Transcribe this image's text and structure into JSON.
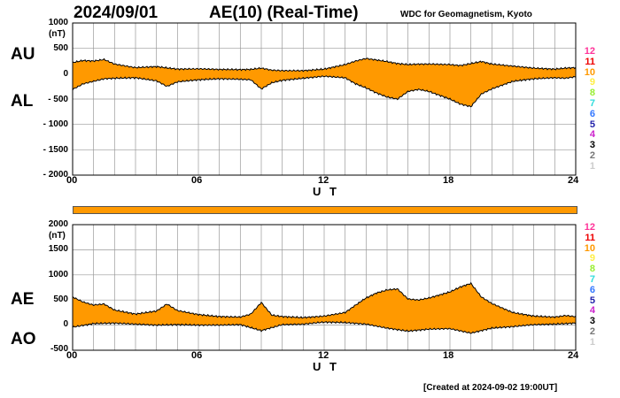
{
  "header": {
    "date": "2024/09/01",
    "title": "AE(10) (Real-Time)",
    "source": "WDC for Geomagnetism, Kyoto"
  },
  "footer": "[Created at 2024-09-02 19:00UT]",
  "colors": {
    "fill": "#ff9900",
    "grid": "#999999",
    "line": "#000000"
  },
  "panels": [
    {
      "labels_upper": "AU",
      "labels_lower": "AL",
      "unit": "(nT)",
      "yticks": [
        "1000",
        "500",
        "0",
        "- 500",
        "- 1000",
        "- 1500",
        "- 2000"
      ],
      "xticks": [
        "00",
        "06",
        "12",
        "18",
        "24"
      ],
      "xlabel": "U T"
    },
    {
      "labels_upper": "AE",
      "labels_lower": "AO",
      "unit": "(nT)",
      "yticks": [
        "2000",
        "1500",
        "1000",
        "500",
        "0",
        "-500"
      ],
      "xticks": [
        "00",
        "06",
        "12",
        "18",
        "24"
      ],
      "xlabel": "U T"
    }
  ],
  "stations": [
    {
      "label": "12",
      "color": "#ff3399"
    },
    {
      "label": "11",
      "color": "#ee0000"
    },
    {
      "label": "10",
      "color": "#ff9900"
    },
    {
      "label": "9",
      "color": "#ffee44"
    },
    {
      "label": "8",
      "color": "#99ee33"
    },
    {
      "label": "7",
      "color": "#33dddd"
    },
    {
      "label": "6",
      "color": "#3377ff"
    },
    {
      "label": "5",
      "color": "#2222aa"
    },
    {
      "label": "4",
      "color": "#cc22cc"
    },
    {
      "label": "3",
      "color": "#000000"
    },
    {
      "label": "2",
      "color": "#777777"
    },
    {
      "label": "1",
      "color": "#cccccc"
    }
  ],
  "chart_data": [
    {
      "type": "area",
      "x_unit": "hours UT",
      "xlim": [
        0,
        24
      ],
      "ylim": [
        -2000,
        1000
      ],
      "series": [
        {
          "name": "AU",
          "x": [
            0,
            0.5,
            1,
            1.5,
            2,
            3,
            4,
            5,
            6,
            7,
            8,
            8.5,
            9,
            9.5,
            10,
            11,
            12,
            13,
            13.5,
            14,
            14.5,
            15,
            15.5,
            16,
            16.5,
            17,
            18,
            18.5,
            19,
            19.5,
            20,
            21,
            22,
            23,
            23.5,
            24
          ],
          "values": [
            220,
            260,
            250,
            280,
            190,
            120,
            140,
            90,
            95,
            85,
            80,
            85,
            110,
            70,
            60,
            60,
            90,
            180,
            250,
            300,
            270,
            240,
            200,
            180,
            190,
            190,
            180,
            160,
            200,
            240,
            190,
            150,
            110,
            90,
            110,
            120
          ]
        },
        {
          "name": "AL",
          "x": [
            0,
            0.5,
            1,
            1.5,
            2,
            3,
            4,
            4.5,
            5,
            6,
            7,
            8,
            8.5,
            9,
            9.5,
            10,
            11,
            12,
            13,
            13.5,
            14,
            14.5,
            15,
            15.5,
            16,
            16.5,
            17,
            18,
            18.5,
            19,
            19.5,
            20,
            21,
            22,
            23,
            23.5,
            24
          ],
          "values": [
            -310,
            -200,
            -150,
            -100,
            -90,
            -80,
            -140,
            -250,
            -160,
            -120,
            -100,
            -110,
            -120,
            -300,
            -180,
            -130,
            -90,
            -50,
            -80,
            -200,
            -280,
            -380,
            -460,
            -500,
            -350,
            -310,
            -350,
            -500,
            -600,
            -650,
            -400,
            -300,
            -150,
            -100,
            -80,
            -90,
            -60
          ]
        }
      ]
    },
    {
      "type": "area",
      "x_unit": "hours UT",
      "xlim": [
        0,
        24
      ],
      "ylim": [
        -500,
        2000
      ],
      "series": [
        {
          "name": "AE",
          "x": [
            0,
            0.5,
            1,
            1.5,
            2,
            3,
            4,
            4.5,
            5,
            6,
            7,
            8,
            8.5,
            9,
            9.5,
            10,
            11,
            12,
            13,
            13.5,
            14,
            14.5,
            15,
            15.5,
            16,
            16.5,
            17,
            18,
            18.5,
            19,
            19.5,
            20,
            21,
            22,
            23,
            23.5,
            24
          ],
          "values": [
            560,
            460,
            400,
            420,
            300,
            220,
            280,
            420,
            290,
            210,
            170,
            160,
            220,
            450,
            200,
            170,
            150,
            180,
            250,
            400,
            540,
            640,
            700,
            720,
            520,
            500,
            540,
            660,
            760,
            830,
            560,
            430,
            250,
            180,
            160,
            190,
            170
          ]
        },
        {
          "name": "AO",
          "x": [
            0,
            1,
            2,
            3,
            4,
            5,
            6,
            7,
            8,
            9,
            10,
            11,
            12,
            13,
            14,
            15,
            16,
            17,
            18,
            19,
            20,
            21,
            22,
            23,
            24
          ],
          "values": [
            -40,
            30,
            40,
            20,
            0,
            10,
            0,
            0,
            10,
            -110,
            10,
            20,
            60,
            50,
            20,
            -60,
            -120,
            -80,
            -70,
            -160,
            -60,
            -30,
            10,
            20,
            40
          ]
        }
      ]
    }
  ]
}
